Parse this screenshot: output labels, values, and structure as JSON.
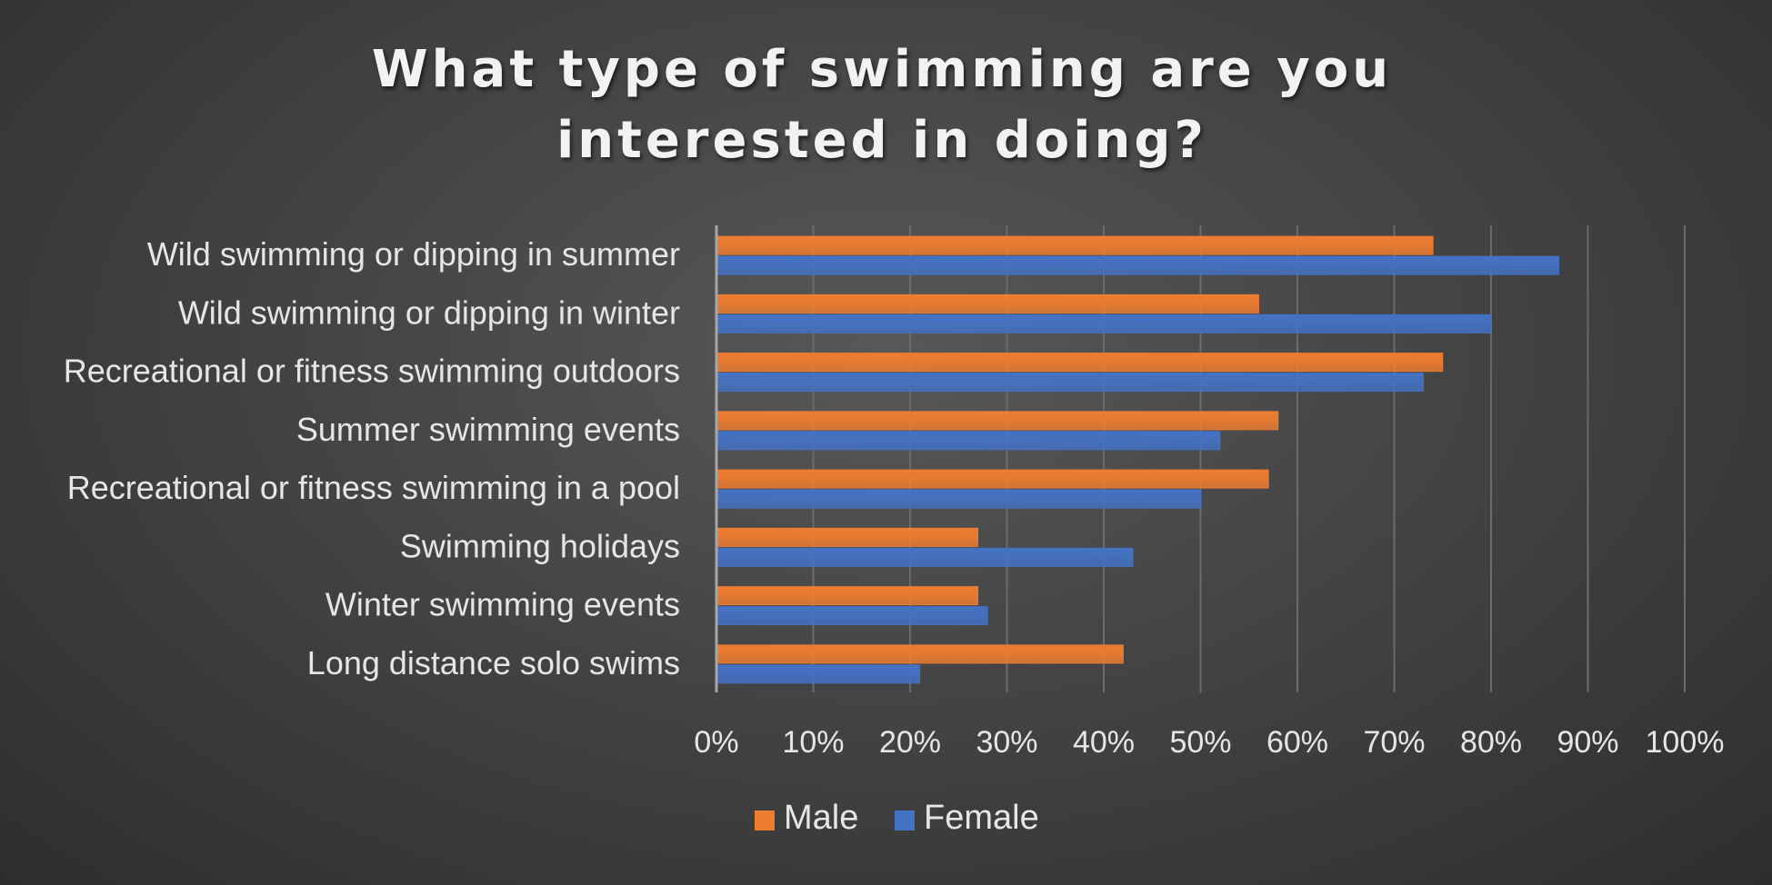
{
  "chart_data": {
    "type": "bar",
    "orientation": "horizontal",
    "title": "What type of swimming are you interested in doing?",
    "categories": [
      "Wild swimming or dipping in summer",
      "Wild swimming or dipping in winter",
      "Recreational or fitness swimming outdoors",
      "Summer swimming events",
      "Recreational or fitness swimming in a pool",
      "Swimming holidays",
      "Winter swimming events",
      "Long distance solo swims"
    ],
    "series": [
      {
        "name": "Male",
        "color": "#ED7D31",
        "values": [
          0.74,
          0.56,
          0.75,
          0.58,
          0.57,
          0.27,
          0.27,
          0.42
        ]
      },
      {
        "name": "Female",
        "color": "#4472C4",
        "values": [
          0.87,
          0.8,
          0.73,
          0.52,
          0.5,
          0.43,
          0.28,
          0.21
        ]
      }
    ],
    "xlim": [
      0,
      1
    ],
    "x_ticks": [
      "0%",
      "10%",
      "20%",
      "30%",
      "40%",
      "50%",
      "60%",
      "70%",
      "80%",
      "90%",
      "100%"
    ],
    "xlabel": "",
    "ylabel": "",
    "grid": true,
    "legend_position": "bottom"
  }
}
